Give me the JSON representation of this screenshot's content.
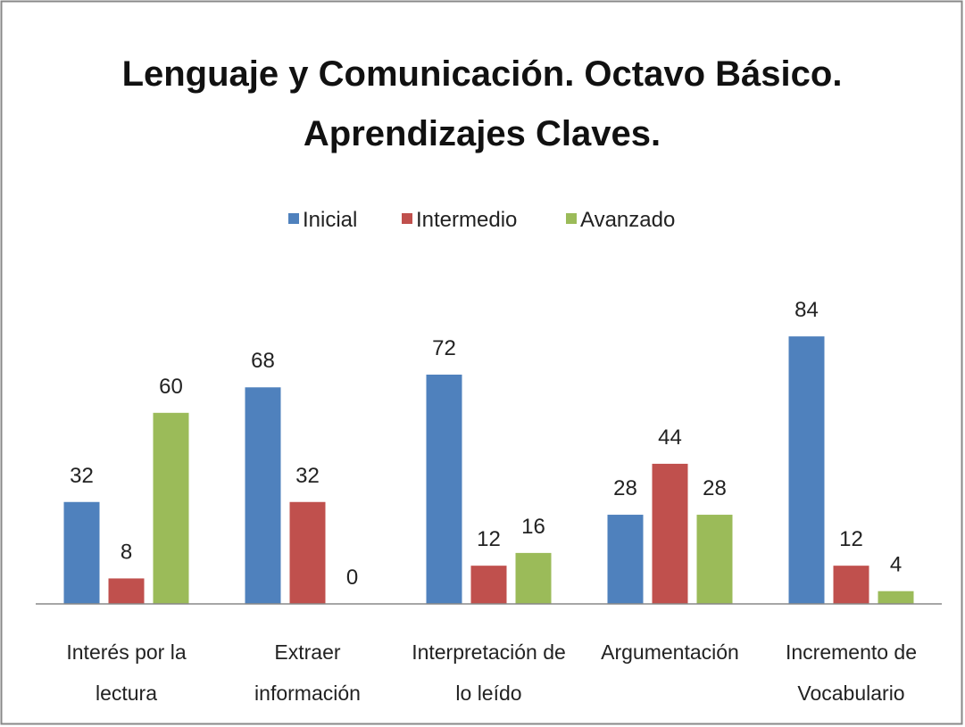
{
  "chart_data": {
    "type": "bar",
    "title": "Lenguaje y Comunicación. Octavo Básico. Aprendizajes Claves.",
    "categories": [
      "Interés por la lectura",
      "Extraer información",
      "Interpretación de lo leído",
      "Argumentación",
      "Incremento de Vocabulario"
    ],
    "series": [
      {
        "name": "Inicial",
        "color": "#4f81bd",
        "values": [
          32,
          68,
          72,
          28,
          84
        ]
      },
      {
        "name": "Intermedio",
        "color": "#c0504d",
        "values": [
          8,
          32,
          12,
          44,
          12
        ]
      },
      {
        "name": "Avanzado",
        "color": "#9bbb59",
        "values": [
          60,
          0,
          16,
          28,
          4
        ]
      }
    ],
    "ylim": [
      0,
      100
    ],
    "legend": "top"
  }
}
